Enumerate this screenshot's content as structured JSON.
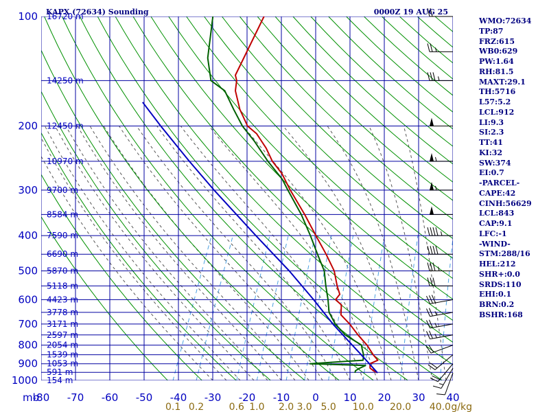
{
  "header": {
    "station": "KAPX (72634) Sounding",
    "time": "0000Z 19 AUG 25"
  },
  "axes": {
    "units_label": "mb",
    "pressure_levels": [
      100,
      200,
      300,
      400,
      500,
      600,
      700,
      800,
      900,
      1000
    ],
    "temperature_ticks": [
      "-80",
      "-70",
      "-60",
      "-50",
      "-40",
      "-30",
      "-20",
      "-10",
      "0",
      "10",
      "20",
      "30",
      "40"
    ],
    "mixing_ratio_ticks": [
      "0.1",
      "0.2",
      "0.6",
      "1.0",
      "2.0",
      "3.0",
      "5.0",
      "10.0",
      "20.0",
      "40.0"
    ],
    "mixing_ratio_unit": "g/kg",
    "heights": [
      {
        "p": 100,
        "label": "16720 m"
      },
      {
        "p": 150,
        "label": "14250 m"
      },
      {
        "p": 200,
        "label": "12450 m"
      },
      {
        "p": 250,
        "label": "10970 m"
      },
      {
        "p": 300,
        "label": "9700 m"
      },
      {
        "p": 350,
        "label": "8584 m"
      },
      {
        "p": 400,
        "label": "7590 m"
      },
      {
        "p": 450,
        "label": "6690 m"
      },
      {
        "p": 500,
        "label": "5870 m"
      },
      {
        "p": 550,
        "label": "5118 m"
      },
      {
        "p": 600,
        "label": "4423 m"
      },
      {
        "p": 650,
        "label": "3778 m"
      },
      {
        "p": 700,
        "label": "3171 m"
      },
      {
        "p": 750,
        "label": "2597 m"
      },
      {
        "p": 800,
        "label": "2054 m"
      },
      {
        "p": 850,
        "label": "1539 m"
      },
      {
        "p": 900,
        "label": "1053 m"
      },
      {
        "p": 950,
        "label": "591 m"
      },
      {
        "p": 1000,
        "label": "154 m"
      }
    ]
  },
  "indices": [
    "WMO:72634",
    "TP:87",
    "FRZ:615",
    "WB0:629",
    "PW:1.64",
    "RH:81.5",
    "MAXT:29.1",
    "TH:5716",
    "L57:5.2",
    "LCL:912",
    "LI:9.3",
    "SI:2.3",
    "TT:41",
    "KI:32",
    "SW:374",
    "EI:0.7",
    "-PARCEL-",
    "CAPE:42",
    "CINH:56629",
    "LCL:843",
    "CAP:9.1",
    "LFC:-1",
    "-WIND-",
    "STM:288/16",
    "HEL:212",
    "SHR+:0.0",
    "SRDS:110",
    "EHI:0.1",
    "BRN:0.2",
    "BSHR:168"
  ],
  "colors": {
    "grid": "#0000a0",
    "dry_adiabat": "#009000",
    "moist_adiabat": "#555555",
    "mixing_ratio": "#4aa0e0",
    "temperature": "#c00000",
    "dewpoint": "#006000",
    "parcel": "#0000c0",
    "wind": "#000000"
  },
  "chart_data": {
    "type": "line",
    "title": "KAPX (72634) Sounding",
    "xlabel": "",
    "ylabel": "mb",
    "xlim": [
      -80,
      40
    ],
    "ylim": [
      1000,
      100
    ],
    "y_scale": "log",
    "grid": true,
    "series": [
      {
        "role": "temperature",
        "points": [
          {
            "p": 953,
            "t": 17.0
          },
          {
            "p": 940,
            "t": 15.5
          },
          {
            "p": 925,
            "t": 14.2
          },
          {
            "p": 900,
            "t": 13.6
          },
          {
            "p": 880,
            "t": 15.4
          },
          {
            "p": 850,
            "t": 13.3
          },
          {
            "p": 800,
            "t": 10.2
          },
          {
            "p": 750,
            "t": 6.2
          },
          {
            "p": 700,
            "t": 2.3
          },
          {
            "p": 660,
            "t": -1.5
          },
          {
            "p": 620,
            "t": -2.7
          },
          {
            "p": 600,
            "t": -5.1
          },
          {
            "p": 580,
            "t": -4.6
          },
          {
            "p": 550,
            "t": -6.5
          },
          {
            "p": 500,
            "t": -9.4
          },
          {
            "p": 450,
            "t": -14.0
          },
          {
            "p": 400,
            "t": -19.5
          },
          {
            "p": 350,
            "t": -25.6
          },
          {
            "p": 300,
            "t": -33.1
          },
          {
            "p": 270,
            "t": -37.8
          },
          {
            "p": 250,
            "t": -42.2
          },
          {
            "p": 230,
            "t": -45.8
          },
          {
            "p": 210,
            "t": -50.5
          },
          {
            "p": 200,
            "t": -54.2
          },
          {
            "p": 180,
            "t": -58.7
          },
          {
            "p": 160,
            "t": -62.5
          },
          {
            "p": 150,
            "t": -63.5
          },
          {
            "p": 145,
            "t": -64.6
          },
          {
            "p": 100,
            "t": -64.2
          }
        ]
      },
      {
        "role": "dewpoint",
        "points": [
          {
            "p": 953,
            "t": 10.4
          },
          {
            "p": 940,
            "t": 10.3
          },
          {
            "p": 925,
            "t": 11.2
          },
          {
            "p": 910,
            "t": 12.5
          },
          {
            "p": 900,
            "t": -3.9
          },
          {
            "p": 880,
            "t": 11.1
          },
          {
            "p": 850,
            "t": 10.5
          },
          {
            "p": 820,
            "t": 9.3
          },
          {
            "p": 800,
            "t": 8.6
          },
          {
            "p": 750,
            "t": 2.5
          },
          {
            "p": 700,
            "t": -1.9
          },
          {
            "p": 650,
            "t": -5.3
          },
          {
            "p": 600,
            "t": -7.3
          },
          {
            "p": 550,
            "t": -9.8
          },
          {
            "p": 500,
            "t": -12.3
          },
          {
            "p": 450,
            "t": -16.5
          },
          {
            "p": 400,
            "t": -21.1
          },
          {
            "p": 350,
            "t": -26.6
          },
          {
            "p": 300,
            "t": -33.8
          },
          {
            "p": 280,
            "t": -36.9
          },
          {
            "p": 250,
            "t": -43.5
          },
          {
            "p": 220,
            "t": -50.2
          },
          {
            "p": 200,
            "t": -55.7
          },
          {
            "p": 180,
            "t": -60.5
          },
          {
            "p": 160,
            "t": -65.6
          },
          {
            "p": 150,
            "t": -71.0
          },
          {
            "p": 130,
            "t": -75.0
          },
          {
            "p": 100,
            "t": -79.1
          }
        ]
      },
      {
        "role": "parcel",
        "points": [
          {
            "p": 953,
            "t": 17.0
          },
          {
            "p": 900,
            "t": 13.4
          },
          {
            "p": 850,
            "t": 9.8
          },
          {
            "p": 800,
            "t": 5.9
          },
          {
            "p": 700,
            "t": -2.6
          },
          {
            "p": 600,
            "t": -11.5
          },
          {
            "p": 500,
            "t": -22.5
          },
          {
            "p": 400,
            "t": -37.0
          },
          {
            "p": 300,
            "t": -55.3
          },
          {
            "p": 250,
            "t": -66.4
          },
          {
            "p": 200,
            "t": -79.5
          },
          {
            "p": 172,
            "t": -88.0
          }
        ]
      }
    ],
    "wind_barbs": [
      {
        "p": 953,
        "dir": 200,
        "spd": 10
      },
      {
        "p": 925,
        "dir": 210,
        "spd": 15
      },
      {
        "p": 900,
        "dir": 220,
        "spd": 20
      },
      {
        "p": 850,
        "dir": 230,
        "spd": 20
      },
      {
        "p": 800,
        "dir": 250,
        "spd": 20
      },
      {
        "p": 750,
        "dir": 260,
        "spd": 25
      },
      {
        "p": 700,
        "dir": 260,
        "spd": 25
      },
      {
        "p": 650,
        "dir": 260,
        "spd": 25
      },
      {
        "p": 600,
        "dir": 260,
        "spd": 30
      },
      {
        "p": 550,
        "dir": 270,
        "spd": 30
      },
      {
        "p": 500,
        "dir": 270,
        "spd": 35
      },
      {
        "p": 450,
        "dir": 270,
        "spd": 40
      },
      {
        "p": 400,
        "dir": 270,
        "spd": 45
      },
      {
        "p": 350,
        "dir": 270,
        "spd": 50
      },
      {
        "p": 300,
        "dir": 270,
        "spd": 55
      },
      {
        "p": 250,
        "dir": 270,
        "spd": 55
      },
      {
        "p": 200,
        "dir": 270,
        "spd": 50
      },
      {
        "p": 150,
        "dir": 270,
        "spd": 35
      },
      {
        "p": 125,
        "dir": 270,
        "spd": 25
      },
      {
        "p": 100,
        "dir": 270,
        "spd": 20
      }
    ]
  }
}
